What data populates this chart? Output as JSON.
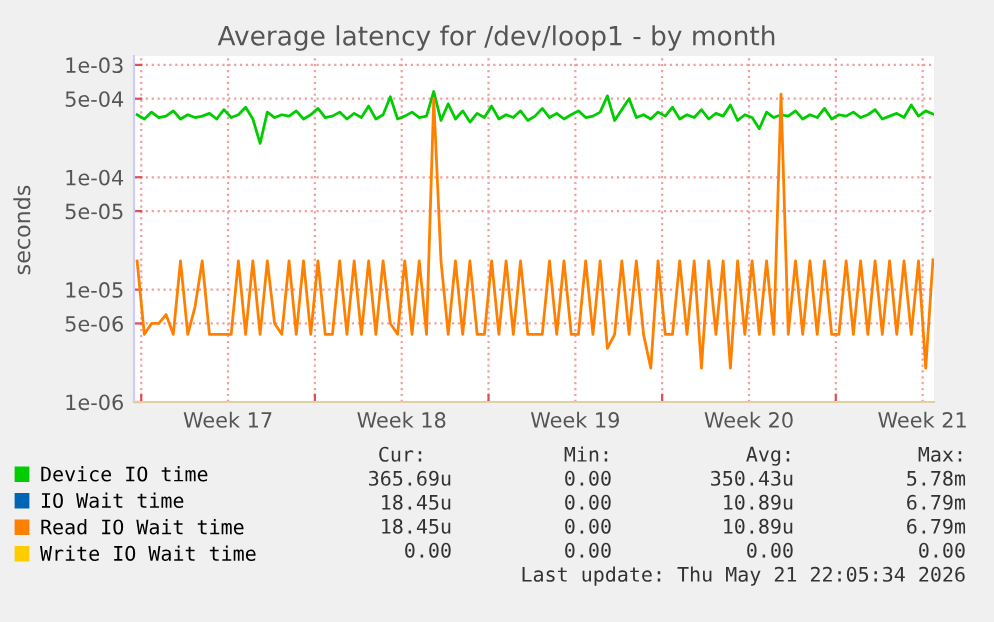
{
  "chart_data": {
    "type": "line",
    "title": "Average latency for /dev/loop1 - by month",
    "ylabel": "seconds",
    "log": "y",
    "grid": true,
    "legend": "bottom",
    "marker": "none",
    "line_style": "solid",
    "xlim": [
      "2026-04-19T17:00",
      "2026-05-21T23:00"
    ],
    "ylim": [
      1e-06,
      0.0012
    ],
    "xticks": [
      {
        "value": "2026-04-20",
        "label": null
      },
      {
        "value": "2026-04-23T12:00",
        "label": "Week 17"
      },
      {
        "value": "2026-04-27",
        "label": null
      },
      {
        "value": "2026-04-30T12:00",
        "label": "Week 18"
      },
      {
        "value": "2026-05-04",
        "label": null
      },
      {
        "value": "2026-05-07T12:00",
        "label": "Week 19"
      },
      {
        "value": "2026-05-11",
        "label": null
      },
      {
        "value": "2026-05-14T12:00",
        "label": "Week 20"
      },
      {
        "value": "2026-05-18",
        "label": null
      },
      {
        "value": "2026-05-21T12:00",
        "label": "Week 21"
      }
    ],
    "yticks": [
      {
        "value": 1e-06,
        "label": "1e-06"
      },
      {
        "value": 5e-06,
        "label": "5e-06"
      },
      {
        "value": 1e-05,
        "label": "1e-05"
      },
      {
        "value": 5e-05,
        "label": "5e-05"
      },
      {
        "value": 0.0001,
        "label": "1e-04"
      },
      {
        "value": 0.0005,
        "label": "5e-04"
      },
      {
        "value": 0.001,
        "label": "1e-03"
      }
    ],
    "x": [
      "2026-04-19T20:00",
      "2026-04-20T03:00",
      "2026-04-20T10:00",
      "2026-04-20T17:00",
      "2026-04-21T00:00",
      "2026-04-21T07:00",
      "2026-04-21T14:00",
      "2026-04-21T21:00",
      "2026-04-22T04:00",
      "2026-04-22T11:00",
      "2026-04-22T18:00",
      "2026-04-23T01:00",
      "2026-04-23T08:00",
      "2026-04-23T15:00",
      "2026-04-23T22:00",
      "2026-04-24T05:00",
      "2026-04-24T12:00",
      "2026-04-24T19:00",
      "2026-04-25T02:00",
      "2026-04-25T09:00",
      "2026-04-25T16:00",
      "2026-04-25T23:00",
      "2026-04-26T06:00",
      "2026-04-26T13:00",
      "2026-04-26T20:00",
      "2026-04-27T03:00",
      "2026-04-27T10:00",
      "2026-04-27T17:00",
      "2026-04-28T00:00",
      "2026-04-28T07:00",
      "2026-04-28T14:00",
      "2026-04-28T21:00",
      "2026-04-29T04:00",
      "2026-04-29T11:00",
      "2026-04-29T18:00",
      "2026-04-30T01:00",
      "2026-04-30T08:00",
      "2026-04-30T15:00",
      "2026-04-30T22:00",
      "2026-05-01T05:00",
      "2026-05-01T12:00",
      "2026-05-01T19:00",
      "2026-05-02T02:00",
      "2026-05-02T09:00",
      "2026-05-02T16:00",
      "2026-05-02T23:00",
      "2026-05-03T06:00",
      "2026-05-03T13:00",
      "2026-05-03T20:00",
      "2026-05-04T03:00",
      "2026-05-04T10:00",
      "2026-05-04T17:00",
      "2026-05-05T00:00",
      "2026-05-05T07:00",
      "2026-05-05T14:00",
      "2026-05-05T21:00",
      "2026-05-06T04:00",
      "2026-05-06T11:00",
      "2026-05-06T18:00",
      "2026-05-07T01:00",
      "2026-05-07T08:00",
      "2026-05-07T15:00",
      "2026-05-07T22:00",
      "2026-05-08T05:00",
      "2026-05-08T12:00",
      "2026-05-08T19:00",
      "2026-05-09T02:00",
      "2026-05-09T09:00",
      "2026-05-09T16:00",
      "2026-05-09T23:00",
      "2026-05-10T06:00",
      "2026-05-10T13:00",
      "2026-05-10T20:00",
      "2026-05-11T03:00",
      "2026-05-11T10:00",
      "2026-05-11T17:00",
      "2026-05-12T00:00",
      "2026-05-12T07:00",
      "2026-05-12T14:00",
      "2026-05-12T21:00",
      "2026-05-13T04:00",
      "2026-05-13T11:00",
      "2026-05-13T18:00",
      "2026-05-14T01:00",
      "2026-05-14T08:00",
      "2026-05-14T15:00",
      "2026-05-14T22:00",
      "2026-05-15T05:00",
      "2026-05-15T12:00",
      "2026-05-15T19:00",
      "2026-05-16T02:00",
      "2026-05-16T09:00",
      "2026-05-16T16:00",
      "2026-05-16T23:00",
      "2026-05-17T06:00",
      "2026-05-17T13:00",
      "2026-05-17T20:00",
      "2026-05-18T03:00",
      "2026-05-18T10:00",
      "2026-05-18T17:00",
      "2026-05-19T00:00",
      "2026-05-19T07:00",
      "2026-05-19T14:00",
      "2026-05-19T21:00",
      "2026-05-20T04:00",
      "2026-05-20T11:00",
      "2026-05-20T18:00",
      "2026-05-21T01:00",
      "2026-05-21T08:00",
      "2026-05-21T15:00",
      "2026-05-21T22:00"
    ],
    "series": [
      {
        "name": "Device IO time",
        "color": "#00cc00",
        "values": [
          0.00036,
          0.00033,
          0.00038,
          0.00034,
          0.00035,
          0.00039,
          0.00033,
          0.00036,
          0.00034,
          0.00035,
          0.00037,
          0.00033,
          0.0004,
          0.00034,
          0.00036,
          0.00042,
          0.00033,
          0.0002,
          0.00038,
          0.00034,
          0.00036,
          0.00035,
          0.00039,
          0.00033,
          0.00036,
          0.00041,
          0.00034,
          0.00035,
          0.00038,
          0.00033,
          0.00037,
          0.00034,
          0.00043,
          0.00033,
          0.00036,
          0.00052,
          0.00033,
          0.00035,
          0.00038,
          0.00034,
          0.00035,
          0.00058,
          0.00032,
          0.00045,
          0.00033,
          0.00039,
          0.00031,
          0.00037,
          0.00034,
          0.00043,
          0.00033,
          0.00036,
          0.00034,
          0.00039,
          0.00032,
          0.00035,
          0.00041,
          0.00034,
          0.00037,
          0.00033,
          0.00036,
          0.00039,
          0.00034,
          0.00035,
          0.00038,
          0.00053,
          0.00032,
          0.0004,
          0.0005,
          0.00034,
          0.00036,
          0.00033,
          0.00038,
          0.00035,
          0.00042,
          0.00033,
          0.00036,
          0.00034,
          0.0004,
          0.00033,
          0.00037,
          0.00035,
          0.00044,
          0.00032,
          0.00036,
          0.00034,
          0.00027,
          0.00038,
          0.00034,
          0.00036,
          0.00035,
          0.00039,
          0.00033,
          0.00036,
          0.00034,
          0.00041,
          0.00033,
          0.00036,
          0.00035,
          0.00038,
          0.00034,
          0.00036,
          0.0004,
          0.00033,
          0.00035,
          0.00037,
          0.00034,
          0.00044,
          0.00035,
          0.00039,
          0.000366
        ]
      },
      {
        "name": "IO Wait time",
        "color": "#0066b3",
        "values": [
          null,
          null,
          null,
          null,
          null,
          null,
          null,
          null,
          null,
          null,
          null,
          null,
          null,
          null,
          null,
          null,
          null,
          null,
          null,
          null,
          null,
          null,
          null,
          null,
          null,
          null,
          null,
          null,
          null,
          null,
          null,
          null,
          null,
          null,
          null,
          null,
          null,
          null,
          null,
          null,
          null,
          null,
          null,
          null,
          null,
          null,
          null,
          null,
          null,
          null,
          null,
          null,
          null,
          null,
          null,
          null,
          null,
          null,
          null,
          null,
          null,
          null,
          null,
          null,
          null,
          null,
          null,
          null,
          null,
          null,
          null,
          null,
          null,
          null,
          null,
          null,
          null,
          null,
          null,
          null,
          null,
          null,
          null,
          null,
          null,
          null,
          null,
          null,
          null,
          null,
          null,
          null,
          null,
          null,
          null,
          null,
          null,
          null,
          null,
          null,
          null,
          null,
          null,
          null,
          null,
          null,
          null,
          null,
          null,
          null,
          null
        ]
      },
      {
        "name": "Read IO Wait time",
        "color": "#ff8000",
        "values": [
          1.8e-05,
          4e-06,
          5e-06,
          5e-06,
          6e-06,
          4e-06,
          1.8e-05,
          4e-06,
          7e-06,
          1.8e-05,
          4e-06,
          4e-06,
          4e-06,
          4e-06,
          1.8e-05,
          4e-06,
          1.8e-05,
          4e-06,
          1.8e-05,
          5e-06,
          4e-06,
          1.8e-05,
          4e-06,
          1.8e-05,
          4e-06,
          1.8e-05,
          4e-06,
          4e-06,
          1.8e-05,
          4e-06,
          1.8e-05,
          4e-06,
          1.8e-05,
          4e-06,
          1.8e-05,
          5e-06,
          4e-06,
          1.8e-05,
          4e-06,
          1.8e-05,
          4e-06,
          0.0005,
          1.8e-05,
          4e-06,
          1.8e-05,
          4e-06,
          1.8e-05,
          4e-06,
          4e-06,
          1.8e-05,
          4e-06,
          1.8e-05,
          4e-06,
          1.8e-05,
          4e-06,
          4e-06,
          4e-06,
          1.8e-05,
          4e-06,
          1.8e-05,
          4e-06,
          4e-06,
          1.8e-05,
          4e-06,
          1.8e-05,
          3e-06,
          4e-06,
          1.8e-05,
          4e-06,
          1.8e-05,
          4e-06,
          2e-06,
          1.8e-05,
          4e-06,
          4e-06,
          1.8e-05,
          4e-06,
          1.8e-05,
          2e-06,
          1.8e-05,
          4e-06,
          1.8e-05,
          2e-06,
          1.8e-05,
          4e-06,
          1.8e-05,
          4e-06,
          1.8e-05,
          4e-06,
          0.00055,
          4e-06,
          1.8e-05,
          4e-06,
          1.8e-05,
          4e-06,
          1.8e-05,
          4e-06,
          4e-06,
          1.8e-05,
          4e-06,
          1.8e-05,
          4e-06,
          1.8e-05,
          4e-06,
          1.8e-05,
          4e-06,
          1.8e-05,
          4e-06,
          1.8e-05,
          2e-06,
          1.845e-05
        ]
      },
      {
        "name": "Write IO Wait time",
        "color": "#ffcc00",
        "values": [
          null,
          null,
          null,
          null,
          null,
          null,
          null,
          null,
          null,
          null,
          null,
          null,
          null,
          null,
          null,
          null,
          null,
          null,
          null,
          null,
          null,
          null,
          null,
          null,
          null,
          null,
          null,
          null,
          null,
          null,
          null,
          null,
          null,
          null,
          null,
          null,
          null,
          null,
          null,
          null,
          null,
          null,
          null,
          null,
          null,
          null,
          null,
          null,
          null,
          null,
          null,
          null,
          null,
          null,
          null,
          null,
          null,
          null,
          null,
          null,
          null,
          null,
          null,
          null,
          null,
          null,
          null,
          null,
          null,
          null,
          null,
          null,
          null,
          null,
          null,
          null,
          null,
          null,
          null,
          null,
          null,
          null,
          null,
          null,
          null,
          null,
          null,
          null,
          null,
          null,
          null,
          null,
          null,
          null,
          null,
          null,
          null,
          null,
          null,
          null,
          null,
          null,
          null,
          null,
          null,
          null,
          null,
          null,
          null,
          null,
          null
        ]
      }
    ],
    "annotations": [
      "Cur:",
      "Min:",
      "Avg:",
      "Max:",
      "365.69u",
      "0.00",
      "350.43u",
      "5.78m",
      "18.45u",
      "0.00",
      "10.89u",
      "6.79m",
      "18.45u",
      "0.00",
      "10.89u",
      "6.79m",
      "0.00",
      "0.00",
      "0.00",
      "0.00",
      "Last update: Thu May 21 22:05:34 2026"
    ]
  }
}
